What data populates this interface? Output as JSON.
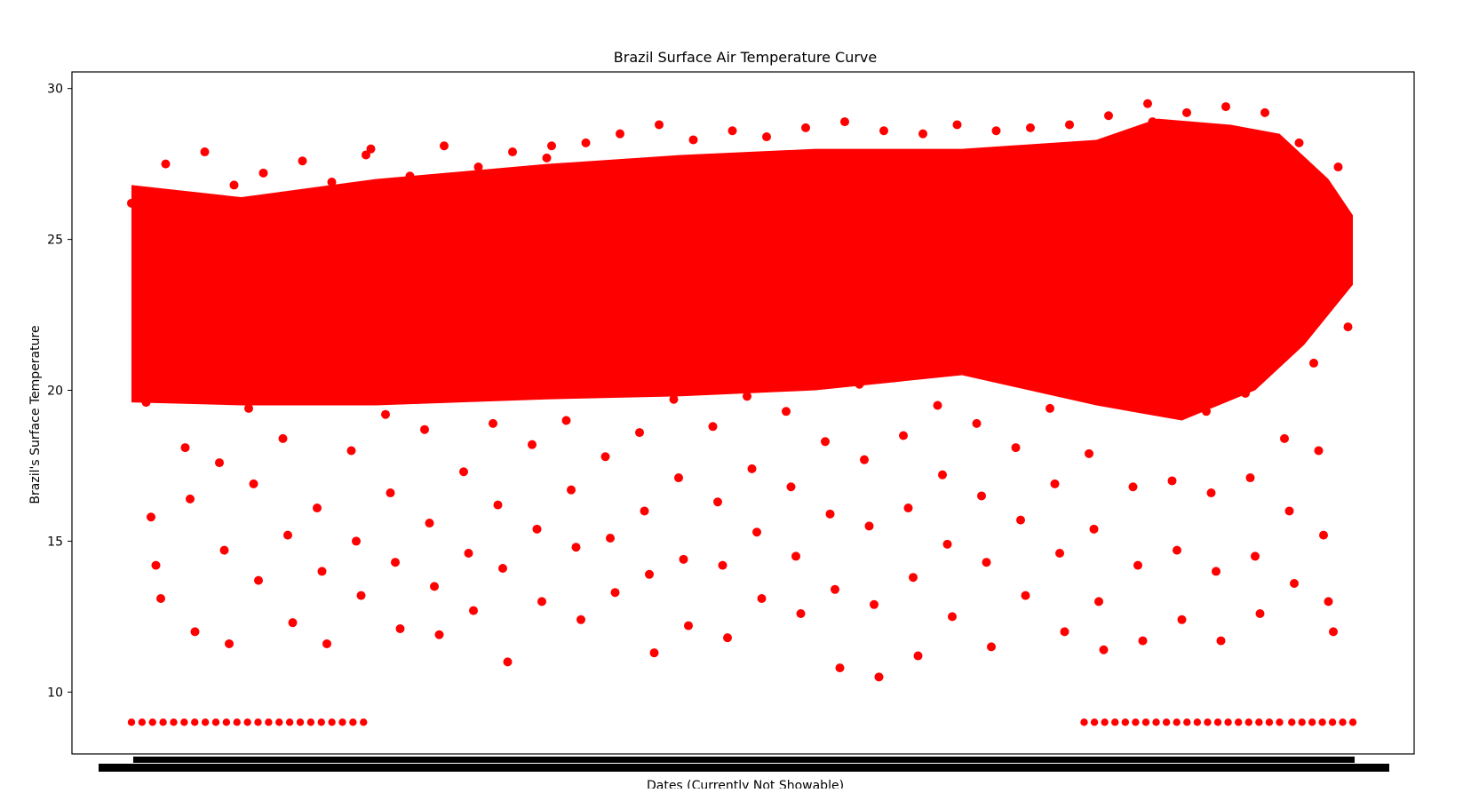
{
  "chart_data": {
    "type": "scatter",
    "title": "Brazil Surface Air Temperature Curve",
    "xlabel": "Dates (Currently Not Showable)",
    "ylabel": "Brazil's Surface Temperature",
    "ylim": [
      7.95,
      30.55
    ],
    "yticks": [
      10,
      15,
      20,
      25,
      30
    ],
    "xtick_labels_readable": false,
    "grid": false,
    "legend": "none",
    "marker_color": "#ff0000",
    "series": [
      {
        "values_note_removed": true,
        "points": [
          [
            0.0,
            26.2
          ],
          [
            0.004,
            23.8
          ],
          [
            0.008,
            21.4
          ],
          [
            0.012,
            19.6
          ],
          [
            0.016,
            15.8
          ],
          [
            0.02,
            14.2
          ],
          [
            0.024,
            13.1
          ],
          [
            0.028,
            27.5
          ],
          [
            0.032,
            25.4
          ],
          [
            0.036,
            22.6
          ],
          [
            0.04,
            20.3
          ],
          [
            0.044,
            18.1
          ],
          [
            0.048,
            16.4
          ],
          [
            0.052,
            12.0
          ],
          [
            0.056,
            25.9
          ],
          [
            0.06,
            27.9
          ],
          [
            0.064,
            23.1
          ],
          [
            0.068,
            21.0
          ],
          [
            0.072,
            17.6
          ],
          [
            0.076,
            14.7
          ],
          [
            0.08,
            11.6
          ],
          [
            0.084,
            26.8
          ],
          [
            0.088,
            24.7
          ],
          [
            0.092,
            22.2
          ],
          [
            0.096,
            19.4
          ],
          [
            0.1,
            16.9
          ],
          [
            0.104,
            13.7
          ],
          [
            0.108,
            27.2
          ],
          [
            0.112,
            24.3
          ],
          [
            0.116,
            21.8
          ],
          [
            0.12,
            20.1
          ],
          [
            0.124,
            18.4
          ],
          [
            0.128,
            15.2
          ],
          [
            0.132,
            12.3
          ],
          [
            0.136,
            26.5
          ],
          [
            0.14,
            27.6
          ],
          [
            0.144,
            23.6
          ],
          [
            0.148,
            21.2
          ],
          [
            0.152,
            16.1
          ],
          [
            0.156,
            14.0
          ],
          [
            0.16,
            11.6
          ],
          [
            0.164,
            26.9
          ],
          [
            0.168,
            25.1
          ],
          [
            0.172,
            22.9
          ],
          [
            0.176,
            20.6
          ],
          [
            0.18,
            18.0
          ],
          [
            0.184,
            15.0
          ],
          [
            0.188,
            13.2
          ],
          [
            0.192,
            27.8
          ],
          [
            0.196,
            28.0
          ],
          [
            0.2,
            24.4
          ],
          [
            0.204,
            21.5
          ],
          [
            0.208,
            19.2
          ],
          [
            0.212,
            16.6
          ],
          [
            0.216,
            14.3
          ],
          [
            0.22,
            12.1
          ],
          [
            0.224,
            26.4
          ],
          [
            0.228,
            27.1
          ],
          [
            0.232,
            23.4
          ],
          [
            0.236,
            20.9
          ],
          [
            0.24,
            18.7
          ],
          [
            0.244,
            15.6
          ],
          [
            0.248,
            13.5
          ],
          [
            0.252,
            11.9
          ],
          [
            0.256,
            28.1
          ],
          [
            0.26,
            25.6
          ],
          [
            0.264,
            22.4
          ],
          [
            0.268,
            19.9
          ],
          [
            0.272,
            17.3
          ],
          [
            0.276,
            14.6
          ],
          [
            0.28,
            12.7
          ],
          [
            0.284,
            27.4
          ],
          [
            0.288,
            24.9
          ],
          [
            0.292,
            21.7
          ],
          [
            0.296,
            18.9
          ],
          [
            0.3,
            16.2
          ],
          [
            0.304,
            14.1
          ],
          [
            0.308,
            11.0
          ],
          [
            0.312,
            27.9
          ],
          [
            0.316,
            26.3
          ],
          [
            0.32,
            23.0
          ],
          [
            0.324,
            20.4
          ],
          [
            0.328,
            18.2
          ],
          [
            0.332,
            15.4
          ],
          [
            0.336,
            13.0
          ],
          [
            0.34,
            27.7
          ],
          [
            0.344,
            28.1
          ],
          [
            0.348,
            24.1
          ],
          [
            0.352,
            21.3
          ],
          [
            0.356,
            19.0
          ],
          [
            0.36,
            16.7
          ],
          [
            0.364,
            14.8
          ],
          [
            0.368,
            12.4
          ],
          [
            0.372,
            28.2
          ],
          [
            0.376,
            25.8
          ],
          [
            0.38,
            22.7
          ],
          [
            0.384,
            20.0
          ],
          [
            0.388,
            17.8
          ],
          [
            0.392,
            15.1
          ],
          [
            0.396,
            13.3
          ],
          [
            0.4,
            28.5
          ],
          [
            0.404,
            26.1
          ],
          [
            0.408,
            23.3
          ],
          [
            0.412,
            21.1
          ],
          [
            0.416,
            18.6
          ],
          [
            0.42,
            16.0
          ],
          [
            0.424,
            13.9
          ],
          [
            0.428,
            11.3
          ],
          [
            0.432,
            28.8
          ],
          [
            0.436,
            25.3
          ],
          [
            0.44,
            22.1
          ],
          [
            0.444,
            19.7
          ],
          [
            0.448,
            17.1
          ],
          [
            0.452,
            14.4
          ],
          [
            0.456,
            12.2
          ],
          [
            0.46,
            28.3
          ],
          [
            0.464,
            26.6
          ],
          [
            0.468,
            23.9
          ],
          [
            0.472,
            21.6
          ],
          [
            0.476,
            18.8
          ],
          [
            0.48,
            16.3
          ],
          [
            0.484,
            14.2
          ],
          [
            0.488,
            11.8
          ],
          [
            0.492,
            28.6
          ],
          [
            0.496,
            25.0
          ],
          [
            0.5,
            22.3
          ],
          [
            0.504,
            19.8
          ],
          [
            0.508,
            17.4
          ],
          [
            0.512,
            15.3
          ],
          [
            0.516,
            13.1
          ],
          [
            0.52,
            28.4
          ],
          [
            0.524,
            27.0
          ],
          [
            0.528,
            24.0
          ],
          [
            0.532,
            21.9
          ],
          [
            0.536,
            19.3
          ],
          [
            0.54,
            16.8
          ],
          [
            0.544,
            14.5
          ],
          [
            0.548,
            12.6
          ],
          [
            0.552,
            28.7
          ],
          [
            0.556,
            26.0
          ],
          [
            0.56,
            23.2
          ],
          [
            0.564,
            20.7
          ],
          [
            0.568,
            18.3
          ],
          [
            0.572,
            15.9
          ],
          [
            0.576,
            13.4
          ],
          [
            0.58,
            10.8
          ],
          [
            0.584,
            28.9
          ],
          [
            0.588,
            25.7
          ],
          [
            0.592,
            22.8
          ],
          [
            0.596,
            20.2
          ],
          [
            0.6,
            17.7
          ],
          [
            0.604,
            15.5
          ],
          [
            0.608,
            12.9
          ],
          [
            0.612,
            10.5
          ],
          [
            0.616,
            28.6
          ],
          [
            0.62,
            26.4
          ],
          [
            0.624,
            23.7
          ],
          [
            0.628,
            21.4
          ],
          [
            0.632,
            18.5
          ],
          [
            0.636,
            16.1
          ],
          [
            0.64,
            13.8
          ],
          [
            0.644,
            11.2
          ],
          [
            0.648,
            28.5
          ],
          [
            0.652,
            25.5
          ],
          [
            0.656,
            22.5
          ],
          [
            0.66,
            19.5
          ],
          [
            0.664,
            17.2
          ],
          [
            0.668,
            14.9
          ],
          [
            0.672,
            12.5
          ],
          [
            0.676,
            28.8
          ],
          [
            0.68,
            26.7
          ],
          [
            0.684,
            24.2
          ],
          [
            0.688,
            21.5
          ],
          [
            0.692,
            18.9
          ],
          [
            0.696,
            16.5
          ],
          [
            0.7,
            14.3
          ],
          [
            0.704,
            11.5
          ],
          [
            0.708,
            28.6
          ],
          [
            0.712,
            25.9
          ],
          [
            0.716,
            23.5
          ],
          [
            0.72,
            20.8
          ],
          [
            0.724,
            18.1
          ],
          [
            0.728,
            15.7
          ],
          [
            0.732,
            13.2
          ],
          [
            0.736,
            28.7
          ],
          [
            0.74,
            27.3
          ],
          [
            0.744,
            24.6
          ],
          [
            0.748,
            21.9
          ],
          [
            0.752,
            19.4
          ],
          [
            0.756,
            16.9
          ],
          [
            0.76,
            14.6
          ],
          [
            0.764,
            12.0
          ],
          [
            0.768,
            28.8
          ],
          [
            0.772,
            26.2
          ],
          [
            0.776,
            23.4
          ],
          [
            0.78,
            20.5
          ],
          [
            0.784,
            17.9
          ],
          [
            0.788,
            15.4
          ],
          [
            0.792,
            13.0
          ],
          [
            0.796,
            11.4
          ],
          [
            0.8,
            29.1
          ],
          [
            0.804,
            27.5
          ],
          [
            0.808,
            24.8
          ],
          [
            0.812,
            22.0
          ],
          [
            0.816,
            19.6
          ],
          [
            0.82,
            16.8
          ],
          [
            0.824,
            14.2
          ],
          [
            0.828,
            11.7
          ],
          [
            0.832,
            29.5
          ],
          [
            0.836,
            28.9
          ],
          [
            0.84,
            25.6
          ],
          [
            0.844,
            22.6
          ],
          [
            0.848,
            20.0
          ],
          [
            0.852,
            17.0
          ],
          [
            0.856,
            14.7
          ],
          [
            0.86,
            12.4
          ],
          [
            0.864,
            29.2
          ],
          [
            0.868,
            27.8
          ],
          [
            0.872,
            24.5
          ],
          [
            0.876,
            21.8
          ],
          [
            0.88,
            19.3
          ],
          [
            0.884,
            16.6
          ],
          [
            0.888,
            14.0
          ],
          [
            0.892,
            11.7
          ],
          [
            0.896,
            29.4
          ],
          [
            0.9,
            28.4
          ],
          [
            0.904,
            25.2
          ],
          [
            0.908,
            22.4
          ],
          [
            0.912,
            19.9
          ],
          [
            0.916,
            17.1
          ],
          [
            0.92,
            14.5
          ],
          [
            0.924,
            12.6
          ],
          [
            0.928,
            29.2
          ],
          [
            0.932,
            27.2
          ],
          [
            0.936,
            24.1
          ],
          [
            0.94,
            21.4
          ],
          [
            0.944,
            18.4
          ],
          [
            0.948,
            16.0
          ],
          [
            0.952,
            13.6
          ],
          [
            0.956,
            28.2
          ],
          [
            0.96,
            26.3
          ],
          [
            0.964,
            23.3
          ],
          [
            0.968,
            20.9
          ],
          [
            0.972,
            18.0
          ],
          [
            0.976,
            15.2
          ],
          [
            0.98,
            13.0
          ],
          [
            0.984,
            12.0
          ],
          [
            0.988,
            27.4
          ],
          [
            0.992,
            25.5
          ],
          [
            0.996,
            22.1
          ]
        ]
      }
    ]
  }
}
